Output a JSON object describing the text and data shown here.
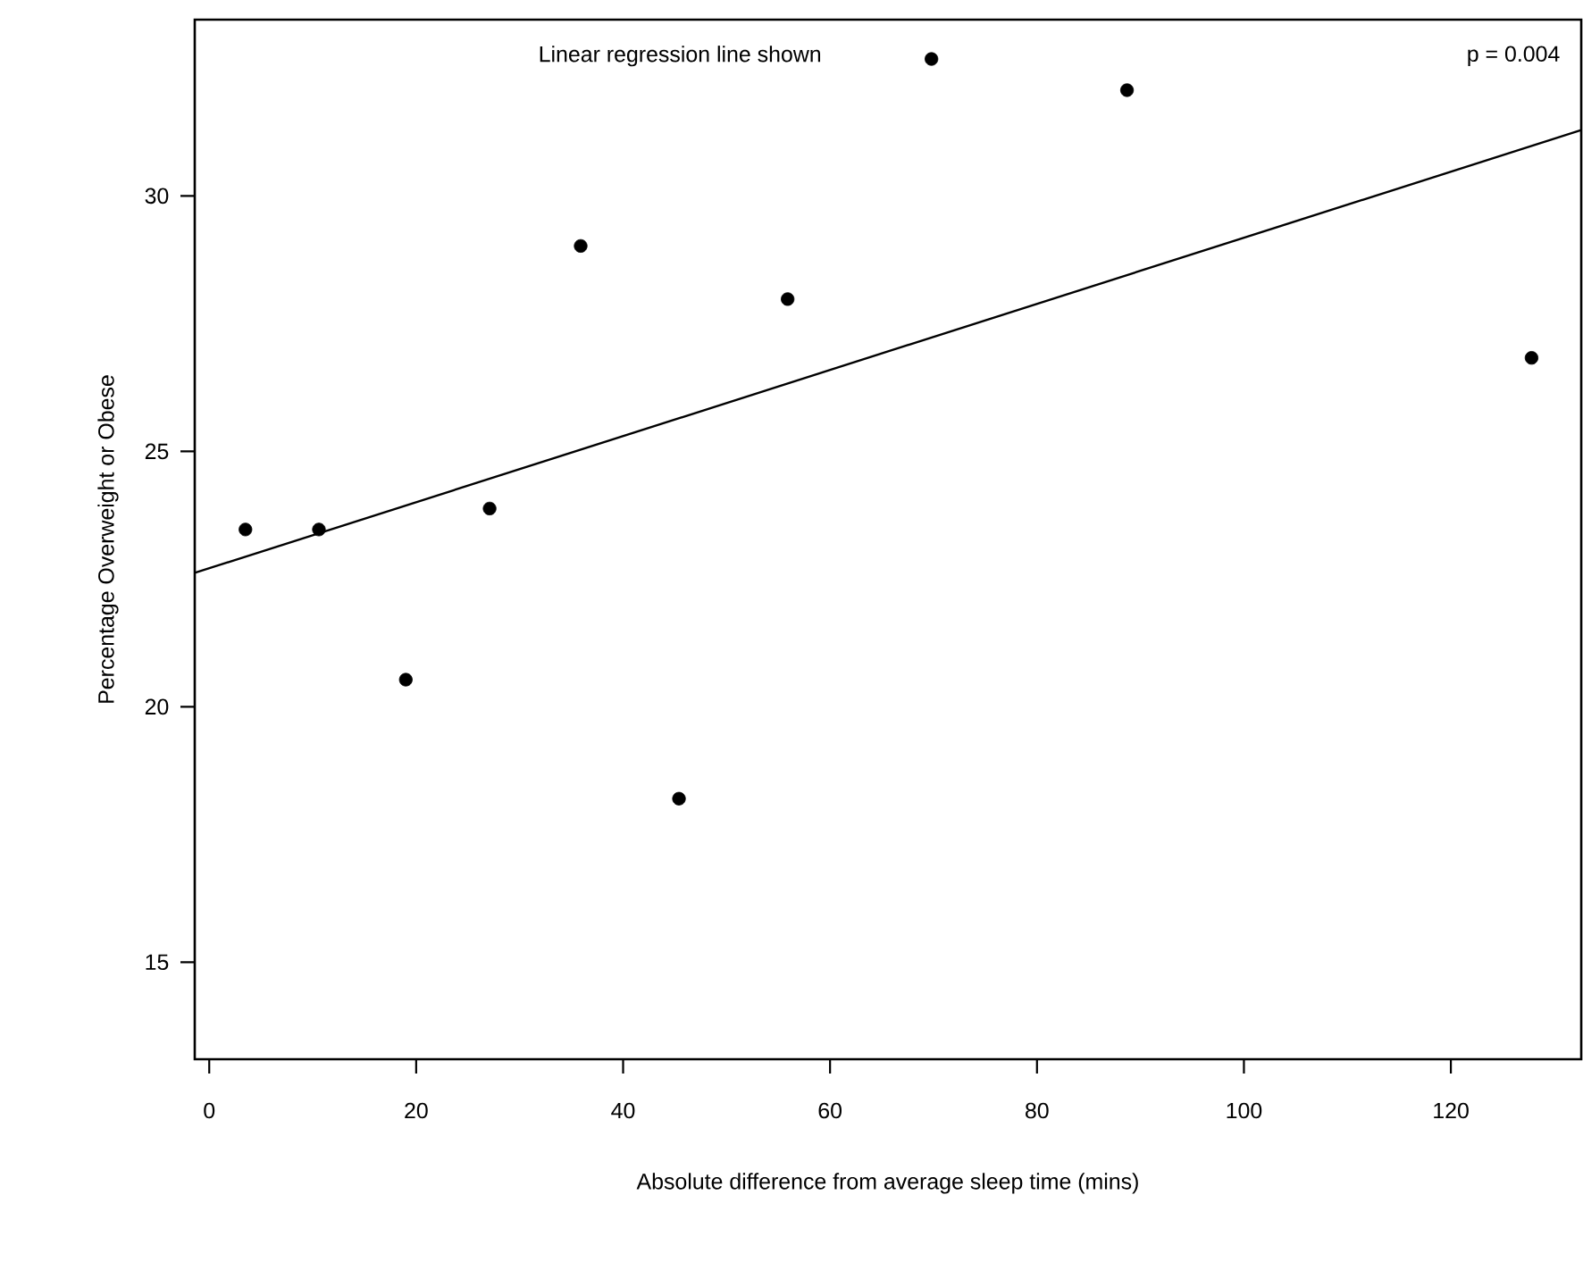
{
  "chart_data": {
    "type": "scatter",
    "xlabel": "Absolute difference from average sleep time (mins)",
    "ylabel": "Percentage Overweight or Obese",
    "annotations": [
      "Linear regression line shown",
      "p = 0.004"
    ],
    "xlim": [
      -1.4,
      132.6
    ],
    "ylim": [
      13.1,
      33.45
    ],
    "xticks": [
      0,
      20,
      40,
      60,
      80,
      100,
      120
    ],
    "yticks": [
      15,
      20,
      25,
      30
    ],
    "grid": false,
    "series": [
      {
        "marker": "circle",
        "color": "#000000",
        "x": [
          3.5,
          10.6,
          19.0,
          27.1,
          35.9,
          45.4,
          55.9,
          69.8,
          88.7,
          127.8
        ],
        "values": [
          23.47,
          23.47,
          20.53,
          23.88,
          29.02,
          18.2,
          27.98,
          32.68,
          32.07,
          26.83
        ]
      },
      {
        "type": "line",
        "marker": "none",
        "line_style": "solid",
        "color": "#000000",
        "x": [
          -1.4,
          132.6
        ],
        "values": [
          22.62,
          31.29
        ]
      }
    ]
  }
}
